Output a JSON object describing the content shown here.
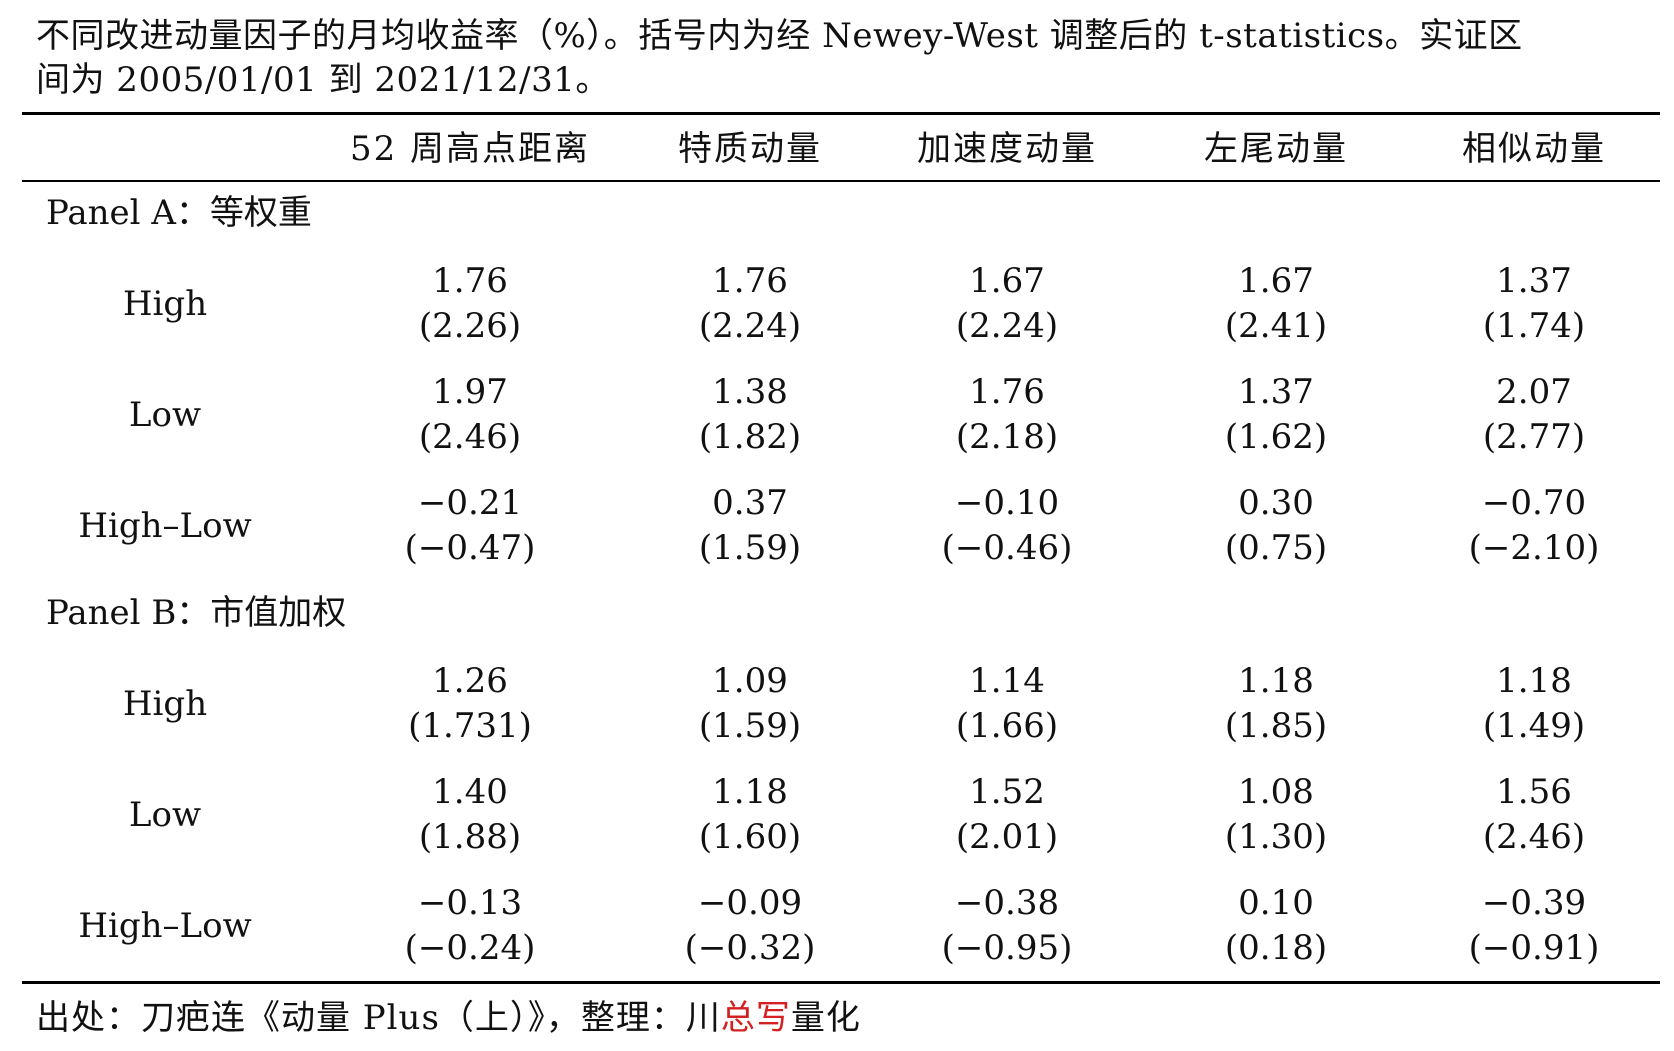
{
  "caption": {
    "line1": "不同改进动量因子的月均收益率（%）。括号内为经 Newey-West 调整后的 t-statistics。实证区",
    "line2": "间为 2005/01/01 到 2021/12/31。"
  },
  "columns": [
    "52 周高点距离",
    "特质动量",
    "加速度动量",
    "左尾动量",
    "相似动量"
  ],
  "panels": [
    {
      "title": "Panel A：等权重",
      "rows": [
        {
          "label": "High",
          "values": [
            "1.76",
            "1.76",
            "1.67",
            "1.67",
            "1.37"
          ],
          "tstats": [
            "(2.26)",
            "(2.24)",
            "(2.24)",
            "(2.41)",
            "(1.74)"
          ]
        },
        {
          "label": "Low",
          "values": [
            "1.97",
            "1.38",
            "1.76",
            "1.37",
            "2.07"
          ],
          "tstats": [
            "(2.46)",
            "(1.82)",
            "(2.18)",
            "(1.62)",
            "(2.77)"
          ]
        },
        {
          "label": "High–Low",
          "values": [
            "−0.21",
            "0.37",
            "−0.10",
            "0.30",
            "−0.70"
          ],
          "tstats": [
            "(−0.47)",
            "(1.59)",
            "(−0.46)",
            "(0.75)",
            "(−2.10)"
          ]
        }
      ]
    },
    {
      "title": "Panel B：市值加权",
      "rows": [
        {
          "label": "High",
          "values": [
            "1.26",
            "1.09",
            "1.14",
            "1.18",
            "1.18"
          ],
          "tstats": [
            "(1.731)",
            "(1.59)",
            "(1.66)",
            "(1.85)",
            "(1.49)"
          ]
        },
        {
          "label": "Low",
          "values": [
            "1.40",
            "1.18",
            "1.52",
            "1.08",
            "1.56"
          ],
          "tstats": [
            "(1.88)",
            "(1.60)",
            "(2.01)",
            "(1.30)",
            "(2.46)"
          ]
        },
        {
          "label": "High–Low",
          "values": [
            "−0.13",
            "−0.09",
            "−0.38",
            "0.10",
            "−0.39"
          ],
          "tstats": [
            "(−0.24)",
            "(−0.32)",
            "(−0.95)",
            "(0.18)",
            "(−0.91)"
          ]
        }
      ]
    }
  ],
  "footer": {
    "prefix": "出处：刀疤连《动量 Plus（上）》，整理：川",
    "highlight": "总写",
    "suffix": "量化",
    "highlight_color": "#d42020"
  }
}
